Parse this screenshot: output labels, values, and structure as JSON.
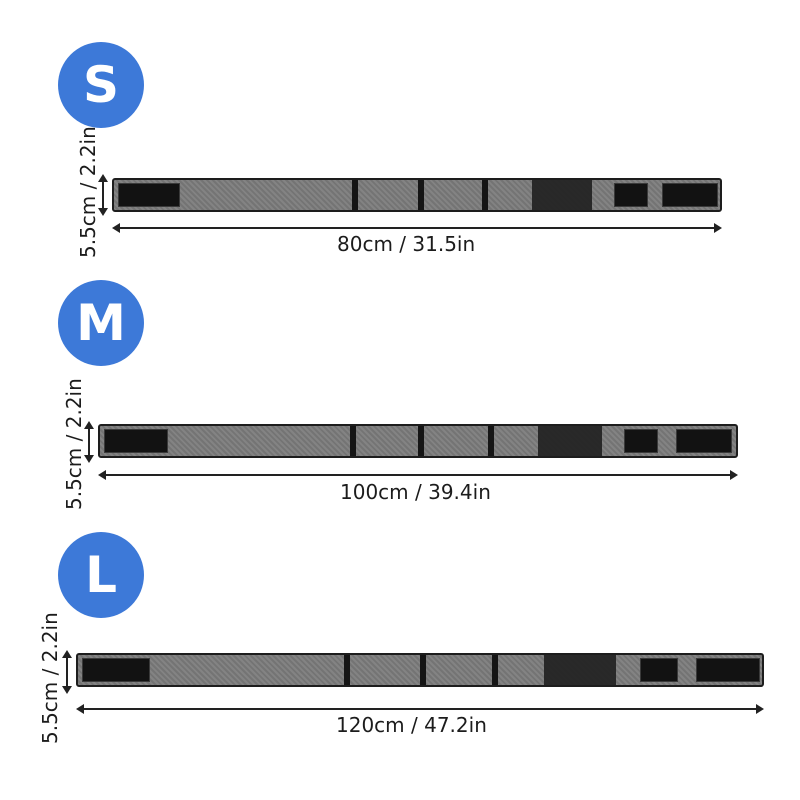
{
  "sizes": [
    {
      "badge": "S",
      "width": "5.5cm / 2.2in",
      "length": "80cm / 31.5in"
    },
    {
      "badge": "M",
      "width": "5.5cm / 2.2in",
      "length": "100cm / 39.4in"
    },
    {
      "badge": "L",
      "width": "5.5cm / 2.2in",
      "length": "120cm / 47.2in"
    }
  ],
  "colors": {
    "badge": "#3d79d8",
    "belt_mesh": "#7d7d7d",
    "belt_trim": "#1a1a1a"
  }
}
